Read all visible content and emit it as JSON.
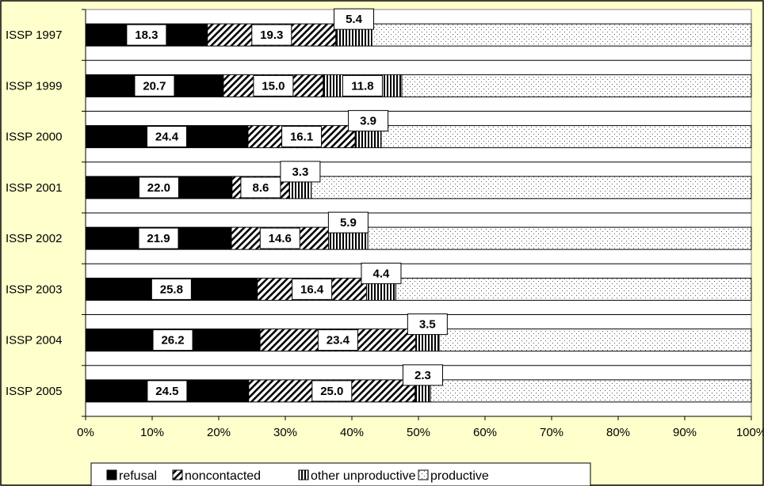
{
  "chart_data": {
    "type": "bar",
    "orientation": "horizontal",
    "stacked": true,
    "normalized": true,
    "categories": [
      "ISSP 1997",
      "ISSP 1999",
      "ISSP 2000",
      "ISSP 2001",
      "ISSP 2002",
      "ISSP 2003",
      "ISSP 2004",
      "ISSP 2005"
    ],
    "series": [
      {
        "name": "refusal",
        "values": [
          18.3,
          20.7,
          24.4,
          22.0,
          21.9,
          25.8,
          26.2,
          24.5
        ],
        "labels": [
          "18.3",
          "20.7",
          "24.4",
          "22.0",
          "21.9",
          "25.8",
          "26.2",
          "24.5"
        ],
        "pattern": "solid"
      },
      {
        "name": "noncontacted",
        "values": [
          19.3,
          15.0,
          16.1,
          8.6,
          14.6,
          16.4,
          23.4,
          25.0
        ],
        "labels": [
          "19.3",
          "15.0",
          "16.1",
          "8.6",
          "14.6",
          "16.4",
          "23.4",
          "25.0"
        ],
        "pattern": "diagonal"
      },
      {
        "name": "other unproductive",
        "values": [
          5.4,
          11.8,
          3.9,
          3.3,
          5.9,
          4.4,
          3.5,
          2.3
        ],
        "labels": [
          "5.4",
          "11.8",
          "3.9",
          "3.3",
          "5.9",
          "4.4",
          "3.5",
          "2.3"
        ],
        "pattern": "vertical"
      },
      {
        "name": "productive",
        "values": [
          57.0,
          52.5,
          55.6,
          66.1,
          57.6,
          53.4,
          46.9,
          48.2
        ],
        "pattern": "dots"
      }
    ],
    "x_ticks": [
      "0%",
      "10%",
      "20%",
      "30%",
      "40%",
      "50%",
      "60%",
      "70%",
      "80%",
      "90%",
      "100%"
    ],
    "xlim": [
      0,
      100
    ],
    "grid": "horizontal",
    "legend_position": "bottom",
    "colors": {
      "background": "#ffffcc",
      "plot": "#ffffff",
      "ink": "#000000",
      "frame": "#808080"
    }
  }
}
